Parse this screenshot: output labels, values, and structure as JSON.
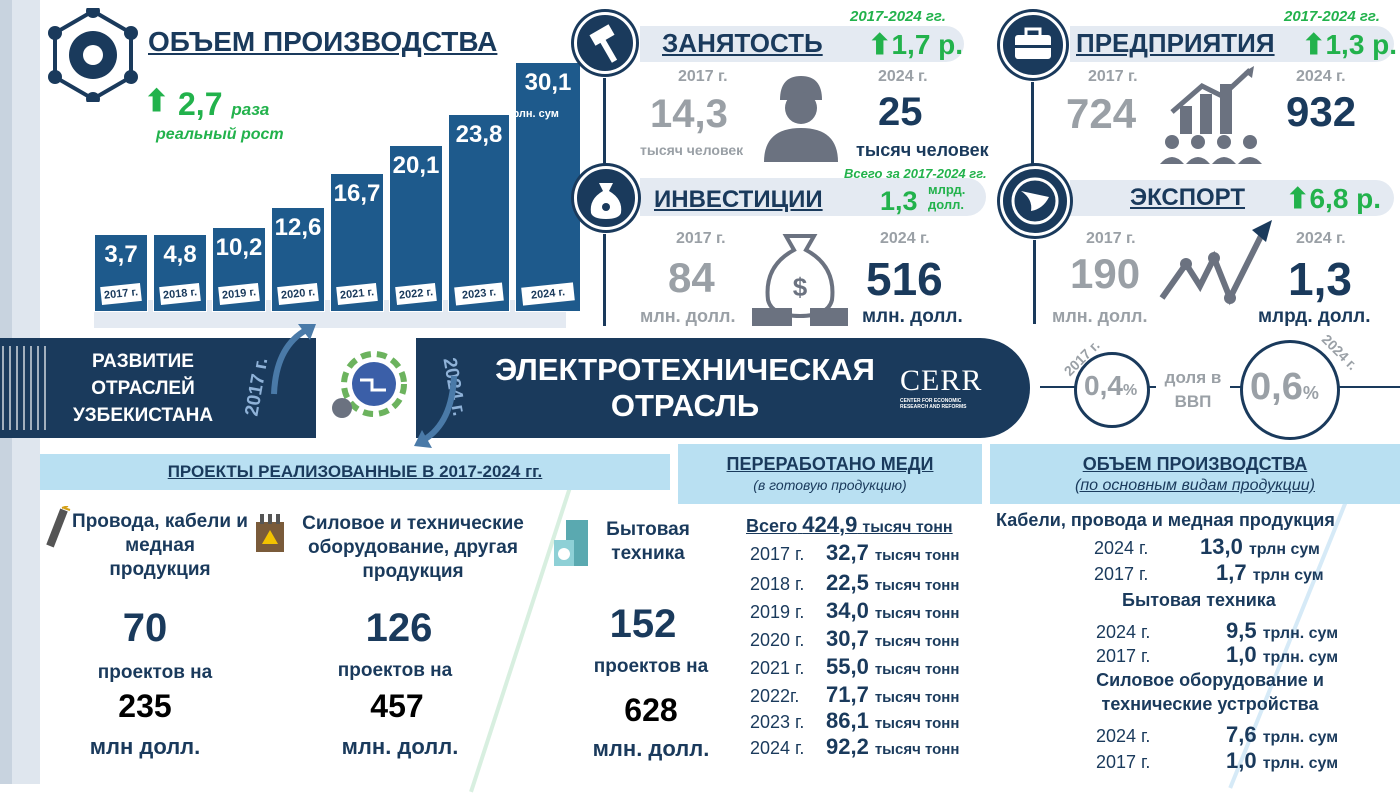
{
  "production": {
    "title": "ОБЪЕМ ПРОИЗВОДСТВА",
    "growth": "2,7",
    "growth_unit": "раза",
    "growth_label": "реальный рост",
    "unit": "трлн. сум"
  },
  "chart_data": {
    "type": "bar",
    "categories": [
      "2017 г.",
      "2018 г.",
      "2019 г.",
      "2020 г.",
      "2021 г.",
      "2022 г.",
      "2023 г.",
      "2024 г."
    ],
    "values": [
      3.7,
      4.8,
      10.2,
      12.6,
      16.7,
      20.1,
      23.8,
      30.1
    ],
    "labels": [
      "3,7",
      "4,8",
      "10,2",
      "12,6",
      "16,7",
      "20,1",
      "23,8",
      "30,1"
    ],
    "title": "ОБЪЕМ ПРОИЗВОДСТВА",
    "ylabel": "трлн. сум"
  },
  "employment": {
    "title": "ЗАНЯТОСТЬ",
    "period": "2017-2024 гг.",
    "growth": "1,7 р.",
    "y1": "2017 г.",
    "v1": "14,3",
    "u1": "тысяч человек",
    "y2": "2024 г.",
    "v2": "25",
    "u2": "тысяч человек"
  },
  "enterprises": {
    "title": "ПРЕДПРИЯТИЯ",
    "period": "2017-2024 гг.",
    "growth": "1,3 р.",
    "y1": "2017 г.",
    "v1": "724",
    "y2": "2024 г.",
    "v2": "932"
  },
  "investments": {
    "title": "ИНВЕСТИЦИИ",
    "period": "Всего за 2017-2024 гг.",
    "total": "1,3",
    "total_unit": "млрд. долл.",
    "y1": "2017 г.",
    "v1": "84",
    "u1": "млн. долл.",
    "y2": "2024 г.",
    "v2": "516",
    "u2": "млн. долл."
  },
  "export": {
    "title": "ЭКСПОРТ",
    "growth": "6,8 р.",
    "y1": "2017 г.",
    "v1": "190",
    "u1": "млн. долл.",
    "y2": "2024 г.",
    "v2": "1,3",
    "u2": "млрд. долл."
  },
  "banner": {
    "left": "РАЗВИТИЕ ОТРАСЛЕЙ УЗБЕКИСТАНА",
    "y2017": "2017 г.",
    "y2024": "2024 г.",
    "title1": "ЭЛЕКТРОТЕХНИЧЕСКАЯ",
    "title2": "ОТРАСЛЬ",
    "logo": "CERR",
    "logo_sub": "CENTER FOR ECONOMIC RESEARCH AND REFORMS"
  },
  "gdp": {
    "y1": "2017 г.",
    "v1": "0,4",
    "label": "доля в ВВП",
    "y2": "2024 г.",
    "v2": "0,6",
    "pct": "%"
  },
  "projects": {
    "title": "ПРОЕКТЫ РЕАЛИЗОВАННЫЕ В 2017-2024 гг.",
    "items": [
      {
        "name": "Провода, кабели и медная продукция",
        "count": "70",
        "mid": "проектов на",
        "sum": "235",
        "unit": "млн долл.",
        "icon": "cable-icon"
      },
      {
        "name": "Силовое и технические оборудование, другая продукция",
        "count": "126",
        "mid": "проектов на",
        "sum": "457",
        "unit": "млн. долл.",
        "icon": "transformer-icon"
      },
      {
        "name": "Бытовая техника",
        "count": "152",
        "mid": "проектов на",
        "sum": "628",
        "unit": "млн. долл.",
        "icon": "appliance-icon"
      }
    ]
  },
  "copper": {
    "title": "ПЕРЕРАБОТАНО МЕДИ",
    "subtitle": "(в готовую продукцию)",
    "total_label": "Всего",
    "total": "424,9",
    "total_unit": "тысяч тонн",
    "rows": [
      {
        "y": "2017 г.",
        "v": "32,7",
        "u": "тысяч тонн"
      },
      {
        "y": "2018 г.",
        "v": "22,5",
        "u": "тысяч тонн"
      },
      {
        "y": "2019 г.",
        "v": "34,0",
        "u": "тысяч тонн"
      },
      {
        "y": "2020 г.",
        "v": "30,7",
        "u": "тысяч тонн"
      },
      {
        "y": "2021 г.",
        "v": "55,0",
        "u": "тысяч тонн"
      },
      {
        "y": "2022г.",
        "v": "71,7",
        "u": "тысяч тонн"
      },
      {
        "y": "2023 г.",
        "v": "86,1",
        "u": "тысяч тонн"
      },
      {
        "y": "2024 г.",
        "v": "92,2",
        "u": "тысяч тонн"
      }
    ]
  },
  "volume": {
    "title": "ОБЪЕМ ПРОИЗВОДСТВА",
    "subtitle": "(по основным видам продукции)",
    "g1": {
      "name": "Кабели, провода и медная продукция",
      "r1y": "2024 г.",
      "r1v": "13,0",
      "r1u": "трлн сум",
      "r2y": "2017 г.",
      "r2v": "1,7",
      "r2u": "трлн сум"
    },
    "g2": {
      "name": "Бытовая техника",
      "r1y": "2024 г.",
      "r1v": "9,5",
      "r1u": "трлн. сум",
      "r2y": "2017 г.",
      "r2v": "1,0",
      "r2u": "трлн. сум"
    },
    "g3": {
      "name1": "Силовое оборудование и",
      "name2": "технические устройства",
      "r1y": "2024 г.",
      "r1v": "7,6",
      "r1u": "трлн. сум",
      "r2y": "2017 г.",
      "r2v": "1,0",
      "r2u": "трлн. сум"
    }
  }
}
